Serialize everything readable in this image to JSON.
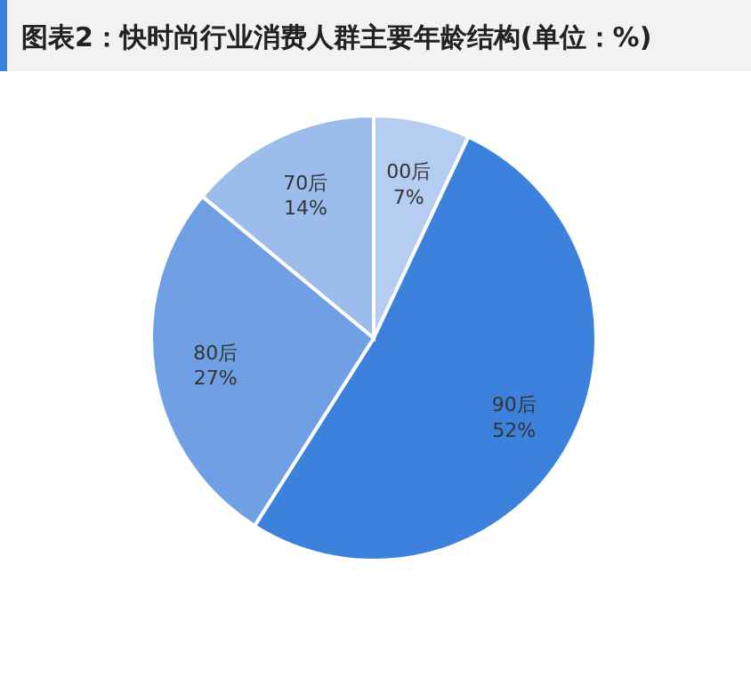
{
  "chart_data": {
    "type": "pie",
    "title": "图表2：快时尚行业消费人群主要年龄结构(单位：%)",
    "categories": [
      "00后",
      "90后",
      "80后",
      "70后"
    ],
    "values": [
      7,
      52,
      27,
      14
    ],
    "colors": [
      "#b4cdf0",
      "#3c82dc",
      "#6fa0e6",
      "#9cbcec"
    ],
    "value_labels": [
      "7%",
      "52%",
      "27%",
      "14%"
    ]
  }
}
